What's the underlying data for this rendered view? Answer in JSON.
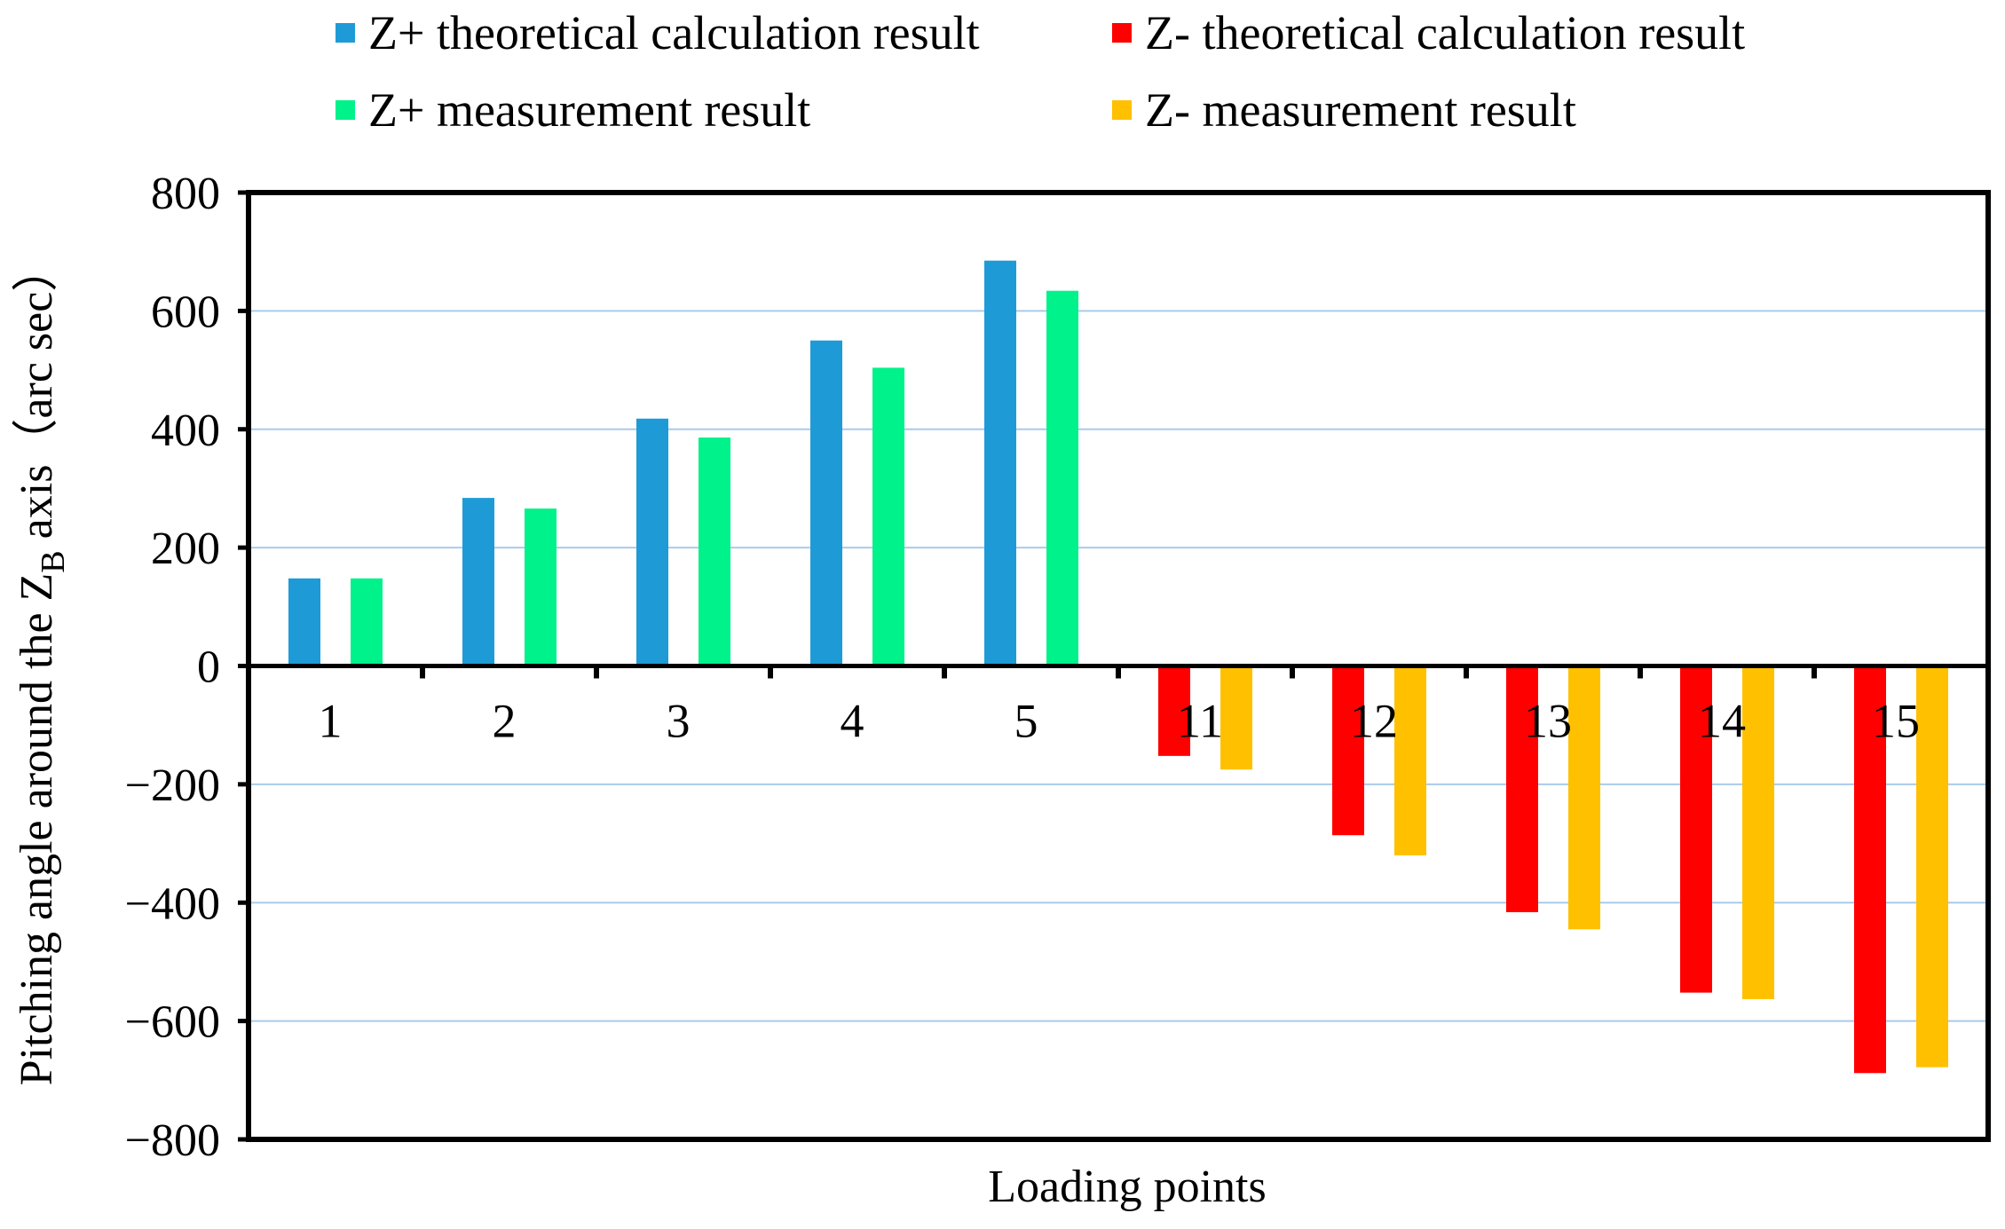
{
  "chart_data": {
    "type": "bar",
    "title": "",
    "xlabel": "Loading points",
    "ylabel_prefix": "Pitching angle around the Z",
    "ylabel_subscript": "B",
    "ylabel_suffix": " axis（arc sec）",
    "ylim": [
      -800,
      800
    ],
    "yticks": [
      800,
      600,
      400,
      200,
      0,
      -200,
      -400,
      -600,
      -800
    ],
    "ytick_labels": [
      "800",
      "600",
      "400",
      "200",
      "0",
      "−200",
      "−400",
      "−600",
      "−800"
    ],
    "grid": true,
    "legend_position": "top",
    "categories": [
      "1",
      "2",
      "3",
      "4",
      "5",
      "11",
      "12",
      "13",
      "14",
      "15"
    ],
    "series": [
      {
        "name": "Z+ theoretical calculation result",
        "color": "#1E9BD7",
        "values": [
          148,
          284,
          418,
          550,
          685,
          null,
          null,
          null,
          null,
          null
        ]
      },
      {
        "name": "Z+ measurement result",
        "color": "#00F28A",
        "values": [
          148,
          266,
          386,
          504,
          634,
          null,
          null,
          null,
          null,
          null
        ]
      },
      {
        "name": "Z- theoretical calculation result",
        "color": "#FF0000",
        "values": [
          null,
          null,
          null,
          null,
          null,
          -152,
          -286,
          -416,
          -552,
          -688
        ]
      },
      {
        "name": "Z- measurement result",
        "color": "#FFC000",
        "values": [
          null,
          null,
          null,
          null,
          null,
          -175,
          -320,
          -445,
          -563,
          -678
        ]
      }
    ],
    "gridline_color": "#A9CBEB",
    "axis_color": "#000000"
  }
}
